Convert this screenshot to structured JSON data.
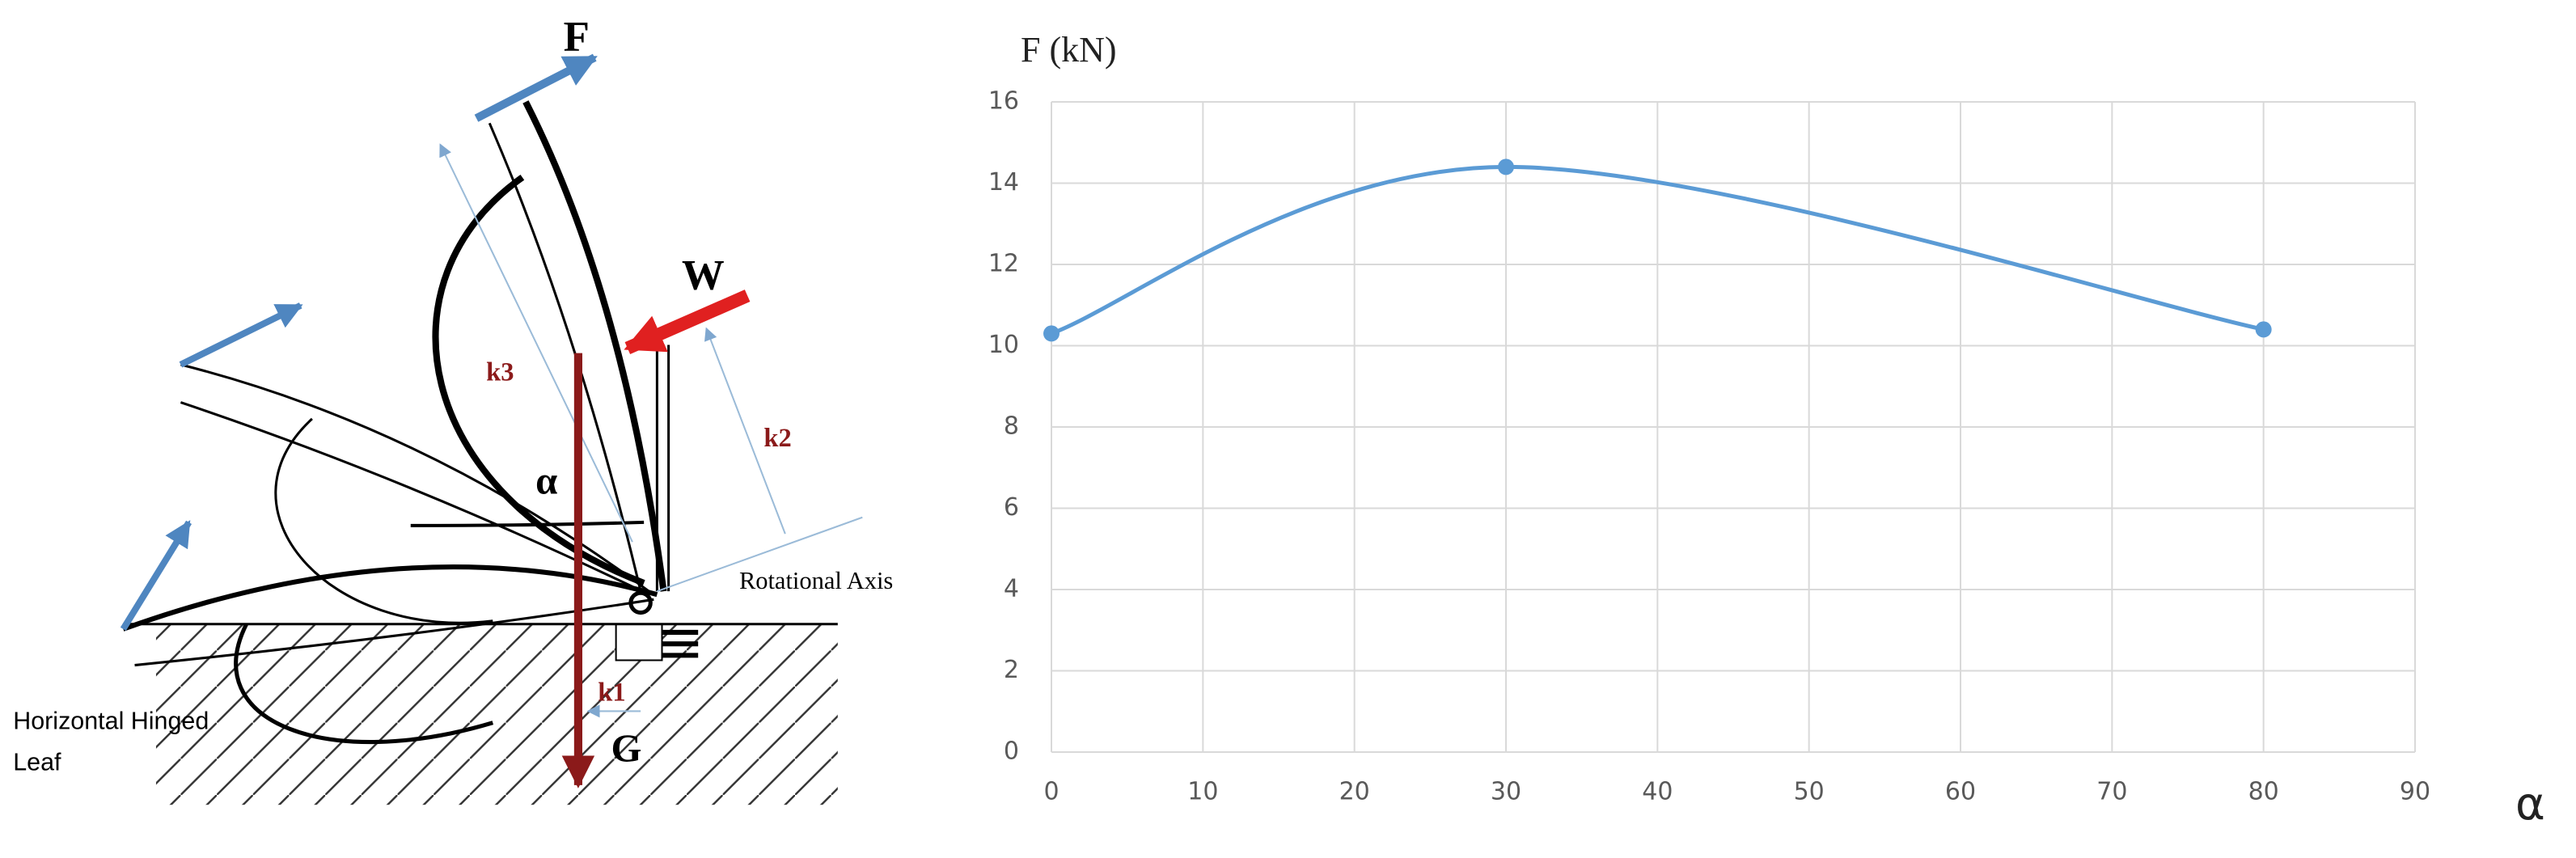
{
  "chart_data": {
    "type": "line",
    "y_label": "F (kN)",
    "x_label": "α",
    "x": [
      0,
      30,
      80
    ],
    "series": [
      {
        "name": "F",
        "color": "#5b9bd5",
        "values": [
          10.3,
          14.4,
          10.4
        ]
      }
    ],
    "xlim": [
      0,
      90
    ],
    "xticks": [
      0,
      10,
      20,
      30,
      40,
      50,
      60,
      70,
      80,
      90
    ],
    "ylim": [
      0,
      16
    ],
    "yticks": [
      0,
      2,
      4,
      6,
      8,
      10,
      12,
      14,
      16
    ],
    "grid": true,
    "smooth": true
  },
  "diagram": {
    "force": "F",
    "wind": "W",
    "gravity": "G",
    "k1": "k1",
    "k2": "k2",
    "k3": "k3",
    "angle": "α",
    "axis_label": "Rotational Axis",
    "leaf_label": [
      "Horizontal Hinged",
      "Leaf"
    ]
  }
}
